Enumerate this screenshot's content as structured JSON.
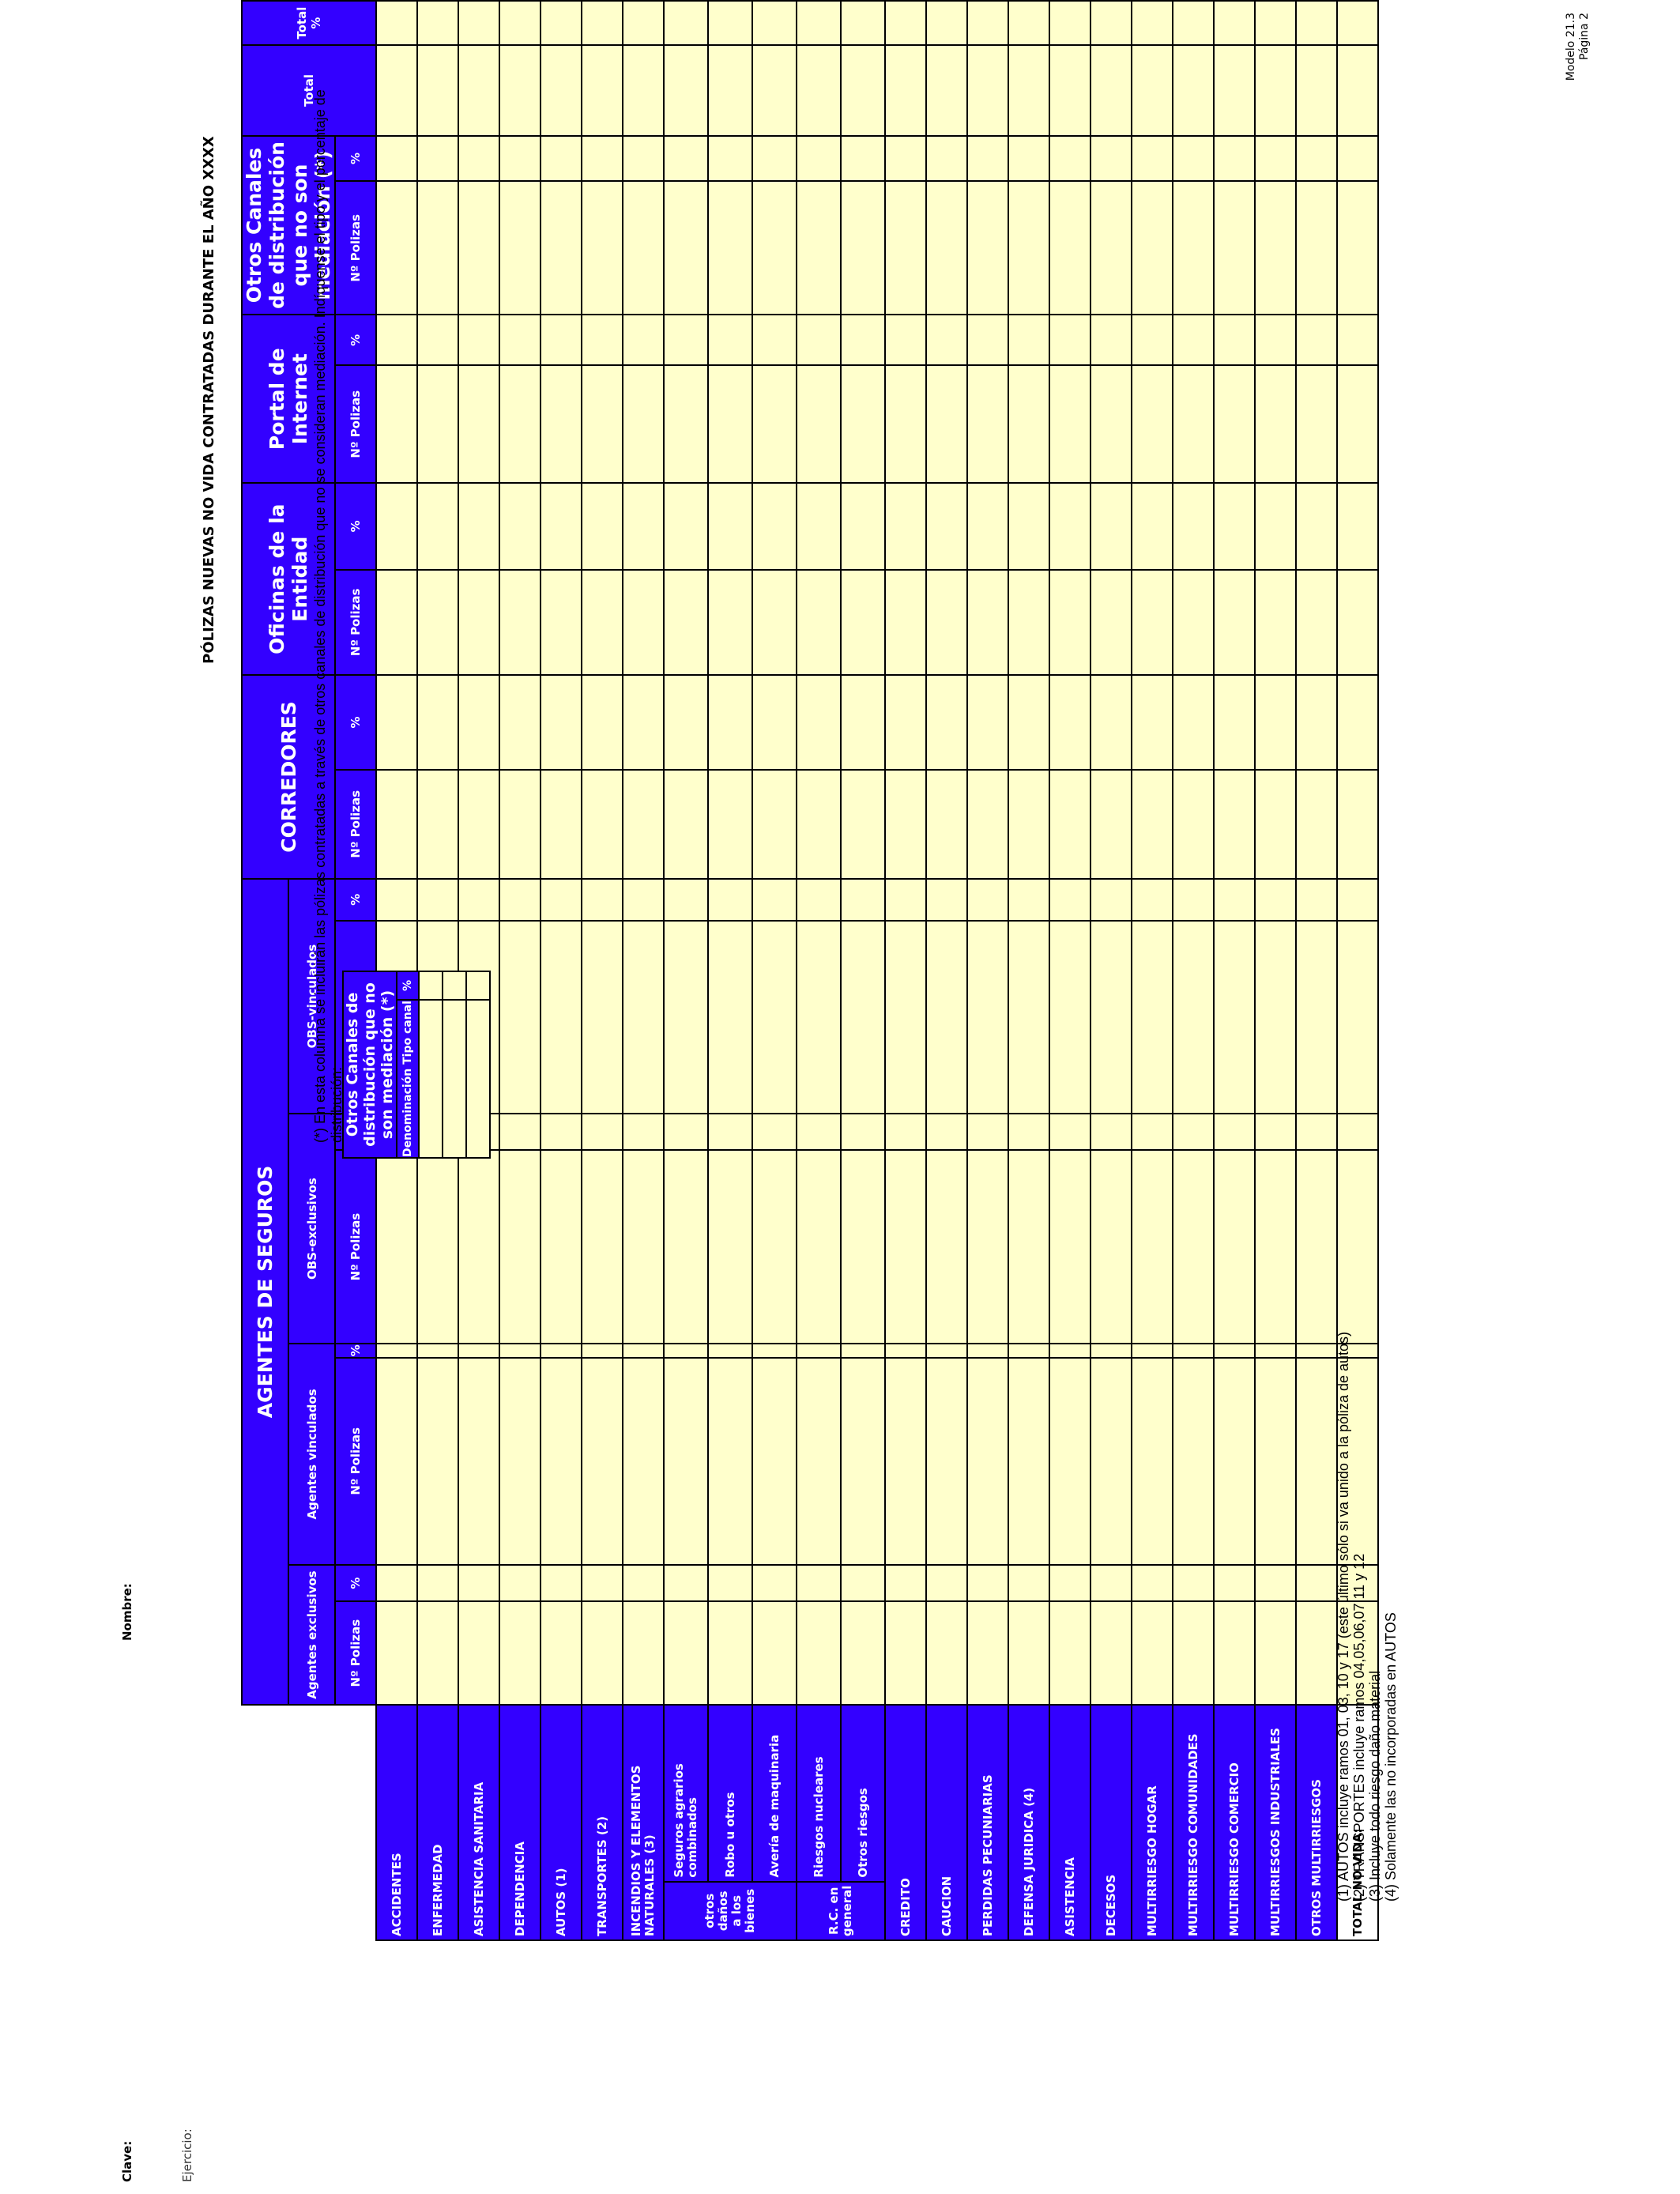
{
  "header": {
    "clave_label": "Clave:",
    "ejercicio_label": "Ejercicio:",
    "nombre_label": "Nombre:",
    "modelo": "Modelo 21.3",
    "pagina": "Página 2",
    "title": "PÓLIZAS NUEVAS NO VIDA CONTRATADAS DURANTE EL AÑO XXXX"
  },
  "groups": {
    "agentes": "AGENTES DE SEGUROS",
    "corredores": "CORREDORES",
    "oficinas": "Oficinas de la Entidad",
    "portal": "Portal de Internet",
    "otros": "Otros Canales de distribución que no son mediación (*)",
    "total": "Total",
    "total_pct": "Total %"
  },
  "subgroups": {
    "agentes_exclusivos": "Agentes exclusivos",
    "agentes_vinculados": "Agentes vinculados",
    "obs_exclusivos": "OBS-exclusivos",
    "obs_vinculados": "OBS-vinculados"
  },
  "colheads": {
    "n_polizas": "Nº Polizas",
    "pct": "%",
    "total": "Total"
  },
  "rows": [
    {
      "label": "ACCIDENTES"
    },
    {
      "label": "ENFERMEDAD"
    },
    {
      "label": "ASISTENCIA SANITARIA"
    },
    {
      "label": "DEPENDENCIA"
    },
    {
      "label": "AUTOS (1)"
    },
    {
      "label": "TRANSPORTES (2)"
    },
    {
      "label": "INCENDIOS Y ELEMENTOS NATURALES (3)"
    },
    {
      "group": "otros daños a los bienes",
      "label": "Seguros agrarios combinados"
    },
    {
      "label": "Robo u otros"
    },
    {
      "label": "Avería de maquinaria"
    },
    {
      "group": "R.C. en general",
      "label": "Riesgos nucleares"
    },
    {
      "label": "Otros riesgos"
    },
    {
      "label": "CREDITO"
    },
    {
      "label": "CAUCION"
    },
    {
      "label": "PERDIDAS PECUNIARIAS"
    },
    {
      "label": "DEFENSA JURIDICA (4)"
    },
    {
      "label": "ASISTENCIA"
    },
    {
      "label": "DECESOS"
    },
    {
      "label": "MULTIRRIESGO HOGAR"
    },
    {
      "label": "MULTIRRIESGO COMUNIDADES"
    },
    {
      "label": "MULTIRRIESGO COMERCIO"
    },
    {
      "label": "MULTIRRIESGOS INDUSTRIALES"
    },
    {
      "label": "OTROS MULTIRRIESGOS"
    }
  ],
  "total_row": "TOTAL NO VIDA:",
  "footnote_star": "(*) En esta columna se incluirán las pólizas contratadas  a través de otros canales de distribución que no se consideran mediación.  Indíquense el tipo y el porcentaje de distribución:",
  "mini_table": {
    "title": "Otros Canales de distribución que no son mediación (*)",
    "col_denominacion": "Denominación Tipo canal",
    "col_pct": "%"
  },
  "notes": [
    "(1) AUTOS incluye ramos 01, 03, 10 y 17 (este último sólo si va unido a la póliza de autos)",
    "(2) TRANSPORTES incluye ramos 04,05,06,07,11 y 12",
    "(3) Incluye todo riesgo daño material",
    "(4) Solamente las no incorporadas en AUTOS"
  ],
  "colors": {
    "header_blue": "#3300ff",
    "cell_yellow": "#ffffcc"
  }
}
